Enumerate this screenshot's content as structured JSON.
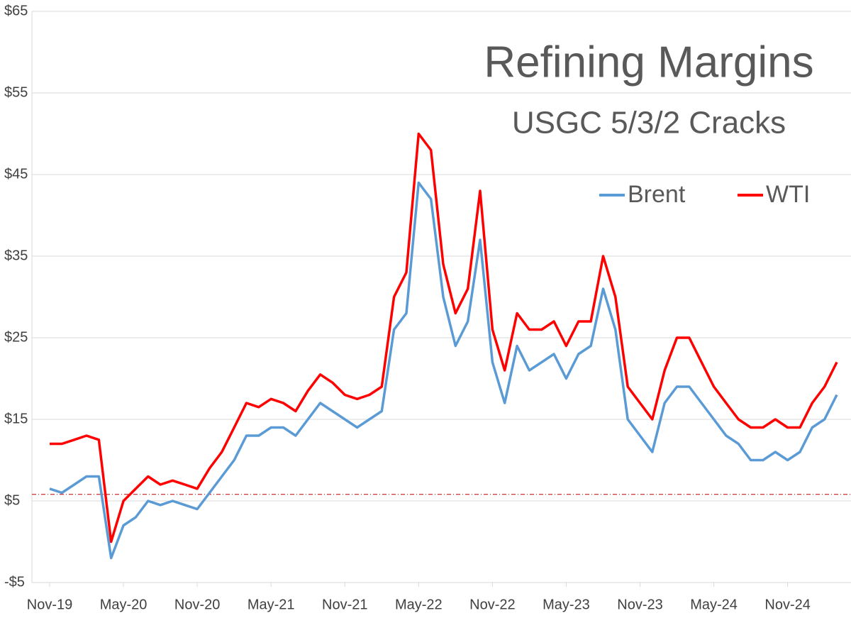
{
  "chart_data": {
    "type": "line",
    "title": "Refining Margins",
    "subtitle": "USGC 5/3/2 Cracks",
    "x": [
      "2019-11",
      "2019-12",
      "2020-01",
      "2020-02",
      "2020-03",
      "2020-04",
      "2020-05",
      "2020-06",
      "2020-07",
      "2020-08",
      "2020-09",
      "2020-10",
      "2020-11",
      "2020-12",
      "2021-01",
      "2021-02",
      "2021-03",
      "2021-04",
      "2021-05",
      "2021-06",
      "2021-07",
      "2021-08",
      "2021-09",
      "2021-10",
      "2021-11",
      "2021-12",
      "2022-01",
      "2022-02",
      "2022-03",
      "2022-04",
      "2022-05",
      "2022-06",
      "2022-07",
      "2022-08",
      "2022-09",
      "2022-10",
      "2022-11",
      "2022-12",
      "2023-01",
      "2023-02",
      "2023-03",
      "2023-04",
      "2023-05",
      "2023-06",
      "2023-07",
      "2023-08",
      "2023-09",
      "2023-10",
      "2023-11",
      "2023-12",
      "2024-01",
      "2024-02",
      "2024-03",
      "2024-04",
      "2024-05",
      "2024-06",
      "2024-07",
      "2024-08",
      "2024-09",
      "2024-10",
      "2024-11",
      "2024-12",
      "2025-01",
      "2025-02",
      "2025-03"
    ],
    "series": [
      {
        "name": "Brent",
        "color": "#5b9bd5",
        "values": [
          6.5,
          6,
          7,
          8,
          8,
          -2,
          2,
          3,
          5,
          4.5,
          5,
          4.5,
          4,
          6,
          8,
          10,
          13,
          13,
          14,
          14,
          13,
          15,
          17,
          16,
          15,
          14,
          15,
          16,
          26,
          28,
          44,
          42,
          30,
          24,
          27,
          37,
          22,
          17,
          24,
          21,
          22,
          23,
          20,
          23,
          24,
          31,
          26,
          15,
          13,
          11,
          17,
          19,
          19,
          17,
          15,
          13,
          12,
          10,
          10,
          11,
          10,
          11,
          14,
          15,
          18
        ]
      },
      {
        "name": "WTI",
        "color": "#ff0000",
        "values": [
          12,
          12,
          12.5,
          13,
          12.5,
          0,
          5,
          6.5,
          8,
          7,
          7.5,
          7,
          6.5,
          9,
          11,
          14,
          17,
          16.5,
          17.5,
          17,
          16,
          18.5,
          20.5,
          19.5,
          18,
          17.5,
          18,
          19,
          30,
          33,
          50,
          48,
          34,
          28,
          31,
          43,
          26,
          21,
          28,
          26,
          26,
          27,
          24,
          27,
          27,
          35,
          30,
          19,
          17,
          15,
          21,
          25,
          25,
          22,
          19,
          17,
          15,
          14,
          14,
          15,
          14,
          14,
          17,
          19,
          22
        ]
      }
    ],
    "xlim": [
      "2019-11",
      "2025-03"
    ],
    "xticks": [
      {
        "value": "2019-11",
        "label": "Nov-19"
      },
      {
        "value": "2020-05",
        "label": "May-20"
      },
      {
        "value": "2020-11",
        "label": "Nov-20"
      },
      {
        "value": "2021-05",
        "label": "May-21"
      },
      {
        "value": "2021-11",
        "label": "Nov-21"
      },
      {
        "value": "2022-05",
        "label": "May-22"
      },
      {
        "value": "2022-11",
        "label": "Nov-22"
      },
      {
        "value": "2023-05",
        "label": "May-23"
      },
      {
        "value": "2023-11",
        "label": "Nov-23"
      },
      {
        "value": "2024-05",
        "label": "May-24"
      },
      {
        "value": "2024-11",
        "label": "Nov-24"
      }
    ],
    "ylim": [
      -5,
      65
    ],
    "yticks": [
      {
        "value": 65,
        "label": "$65"
      },
      {
        "value": 55,
        "label": "$55"
      },
      {
        "value": 45,
        "label": "$45"
      },
      {
        "value": 35,
        "label": "$35"
      },
      {
        "value": 25,
        "label": "$25"
      },
      {
        "value": 15,
        "label": "$15"
      },
      {
        "value": 5,
        "label": "$5"
      },
      {
        "value": -5,
        "label": "-$5"
      }
    ],
    "grid": true,
    "reference_line": {
      "value": 5.8,
      "color": "#c00000"
    },
    "legend": "upper right"
  }
}
